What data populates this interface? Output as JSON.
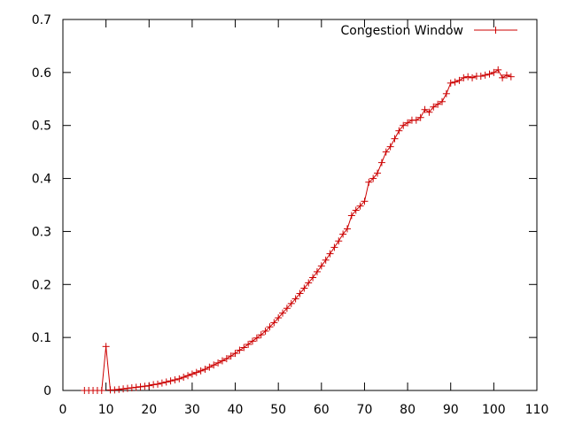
{
  "chart_data": {
    "type": "line",
    "title": "",
    "xlabel": "",
    "ylabel": "",
    "xlim": [
      0,
      110
    ],
    "ylim": [
      0,
      0.7
    ],
    "xticks": [
      0,
      10,
      20,
      30,
      40,
      50,
      60,
      70,
      80,
      90,
      100,
      110
    ],
    "yticks": [
      0,
      0.1,
      0.2,
      0.3,
      0.4,
      0.5,
      0.6,
      0.7
    ],
    "ytick_labels": [
      "0",
      "0.1",
      "0.2",
      "0.3",
      "0.4",
      "0.5",
      "0.6",
      "0.7"
    ],
    "xtick_labels": [
      "0",
      "10",
      "20",
      "30",
      "40",
      "50",
      "60",
      "70",
      "80",
      "90",
      "100",
      "110"
    ],
    "grid": false,
    "legend_position": "top-right",
    "series": [
      {
        "name": "Congestion Window",
        "color": "#cc0000",
        "marker": "plus",
        "x": [
          5,
          6,
          7,
          8,
          9,
          10,
          11,
          12,
          13,
          14,
          15,
          16,
          17,
          18,
          19,
          20,
          21,
          22,
          23,
          24,
          25,
          26,
          27,
          28,
          29,
          30,
          31,
          32,
          33,
          34,
          35,
          36,
          37,
          38,
          39,
          40,
          41,
          42,
          43,
          44,
          45,
          46,
          47,
          48,
          49,
          50,
          51,
          52,
          53,
          54,
          55,
          56,
          57,
          58,
          59,
          60,
          61,
          62,
          63,
          64,
          65,
          66,
          67,
          68,
          69,
          70,
          71,
          72,
          73,
          74,
          75,
          76,
          77,
          78,
          79,
          80,
          81,
          82,
          83,
          84,
          85,
          86,
          87,
          88,
          89,
          90,
          91,
          92,
          93,
          94,
          95,
          96,
          97,
          98,
          99,
          100,
          101,
          102,
          103,
          104
        ],
        "y": [
          0,
          0,
          0,
          0,
          0,
          0.083,
          0.001,
          0.001,
          0.002,
          0.003,
          0.004,
          0.005,
          0.006,
          0.007,
          0.008,
          0.009,
          0.011,
          0.012,
          0.014,
          0.016,
          0.018,
          0.02,
          0.022,
          0.025,
          0.028,
          0.031,
          0.034,
          0.037,
          0.04,
          0.044,
          0.048,
          0.052,
          0.056,
          0.06,
          0.065,
          0.07,
          0.076,
          0.081,
          0.087,
          0.093,
          0.099,
          0.105,
          0.112,
          0.12,
          0.128,
          0.137,
          0.146,
          0.155,
          0.164,
          0.173,
          0.183,
          0.193,
          0.203,
          0.213,
          0.224,
          0.235,
          0.246,
          0.258,
          0.27,
          0.282,
          0.295,
          0.305,
          0.33,
          0.34,
          0.348,
          0.357,
          0.393,
          0.4,
          0.41,
          0.43,
          0.45,
          0.46,
          0.475,
          0.49,
          0.5,
          0.505,
          0.51,
          0.51,
          0.515,
          0.53,
          0.525,
          0.535,
          0.54,
          0.545,
          0.56,
          0.58,
          0.582,
          0.585,
          0.59,
          0.592,
          0.59,
          0.593,
          0.593,
          0.595,
          0.597,
          0.6,
          0.605,
          0.59,
          0.595,
          0.592
        ]
      }
    ]
  }
}
